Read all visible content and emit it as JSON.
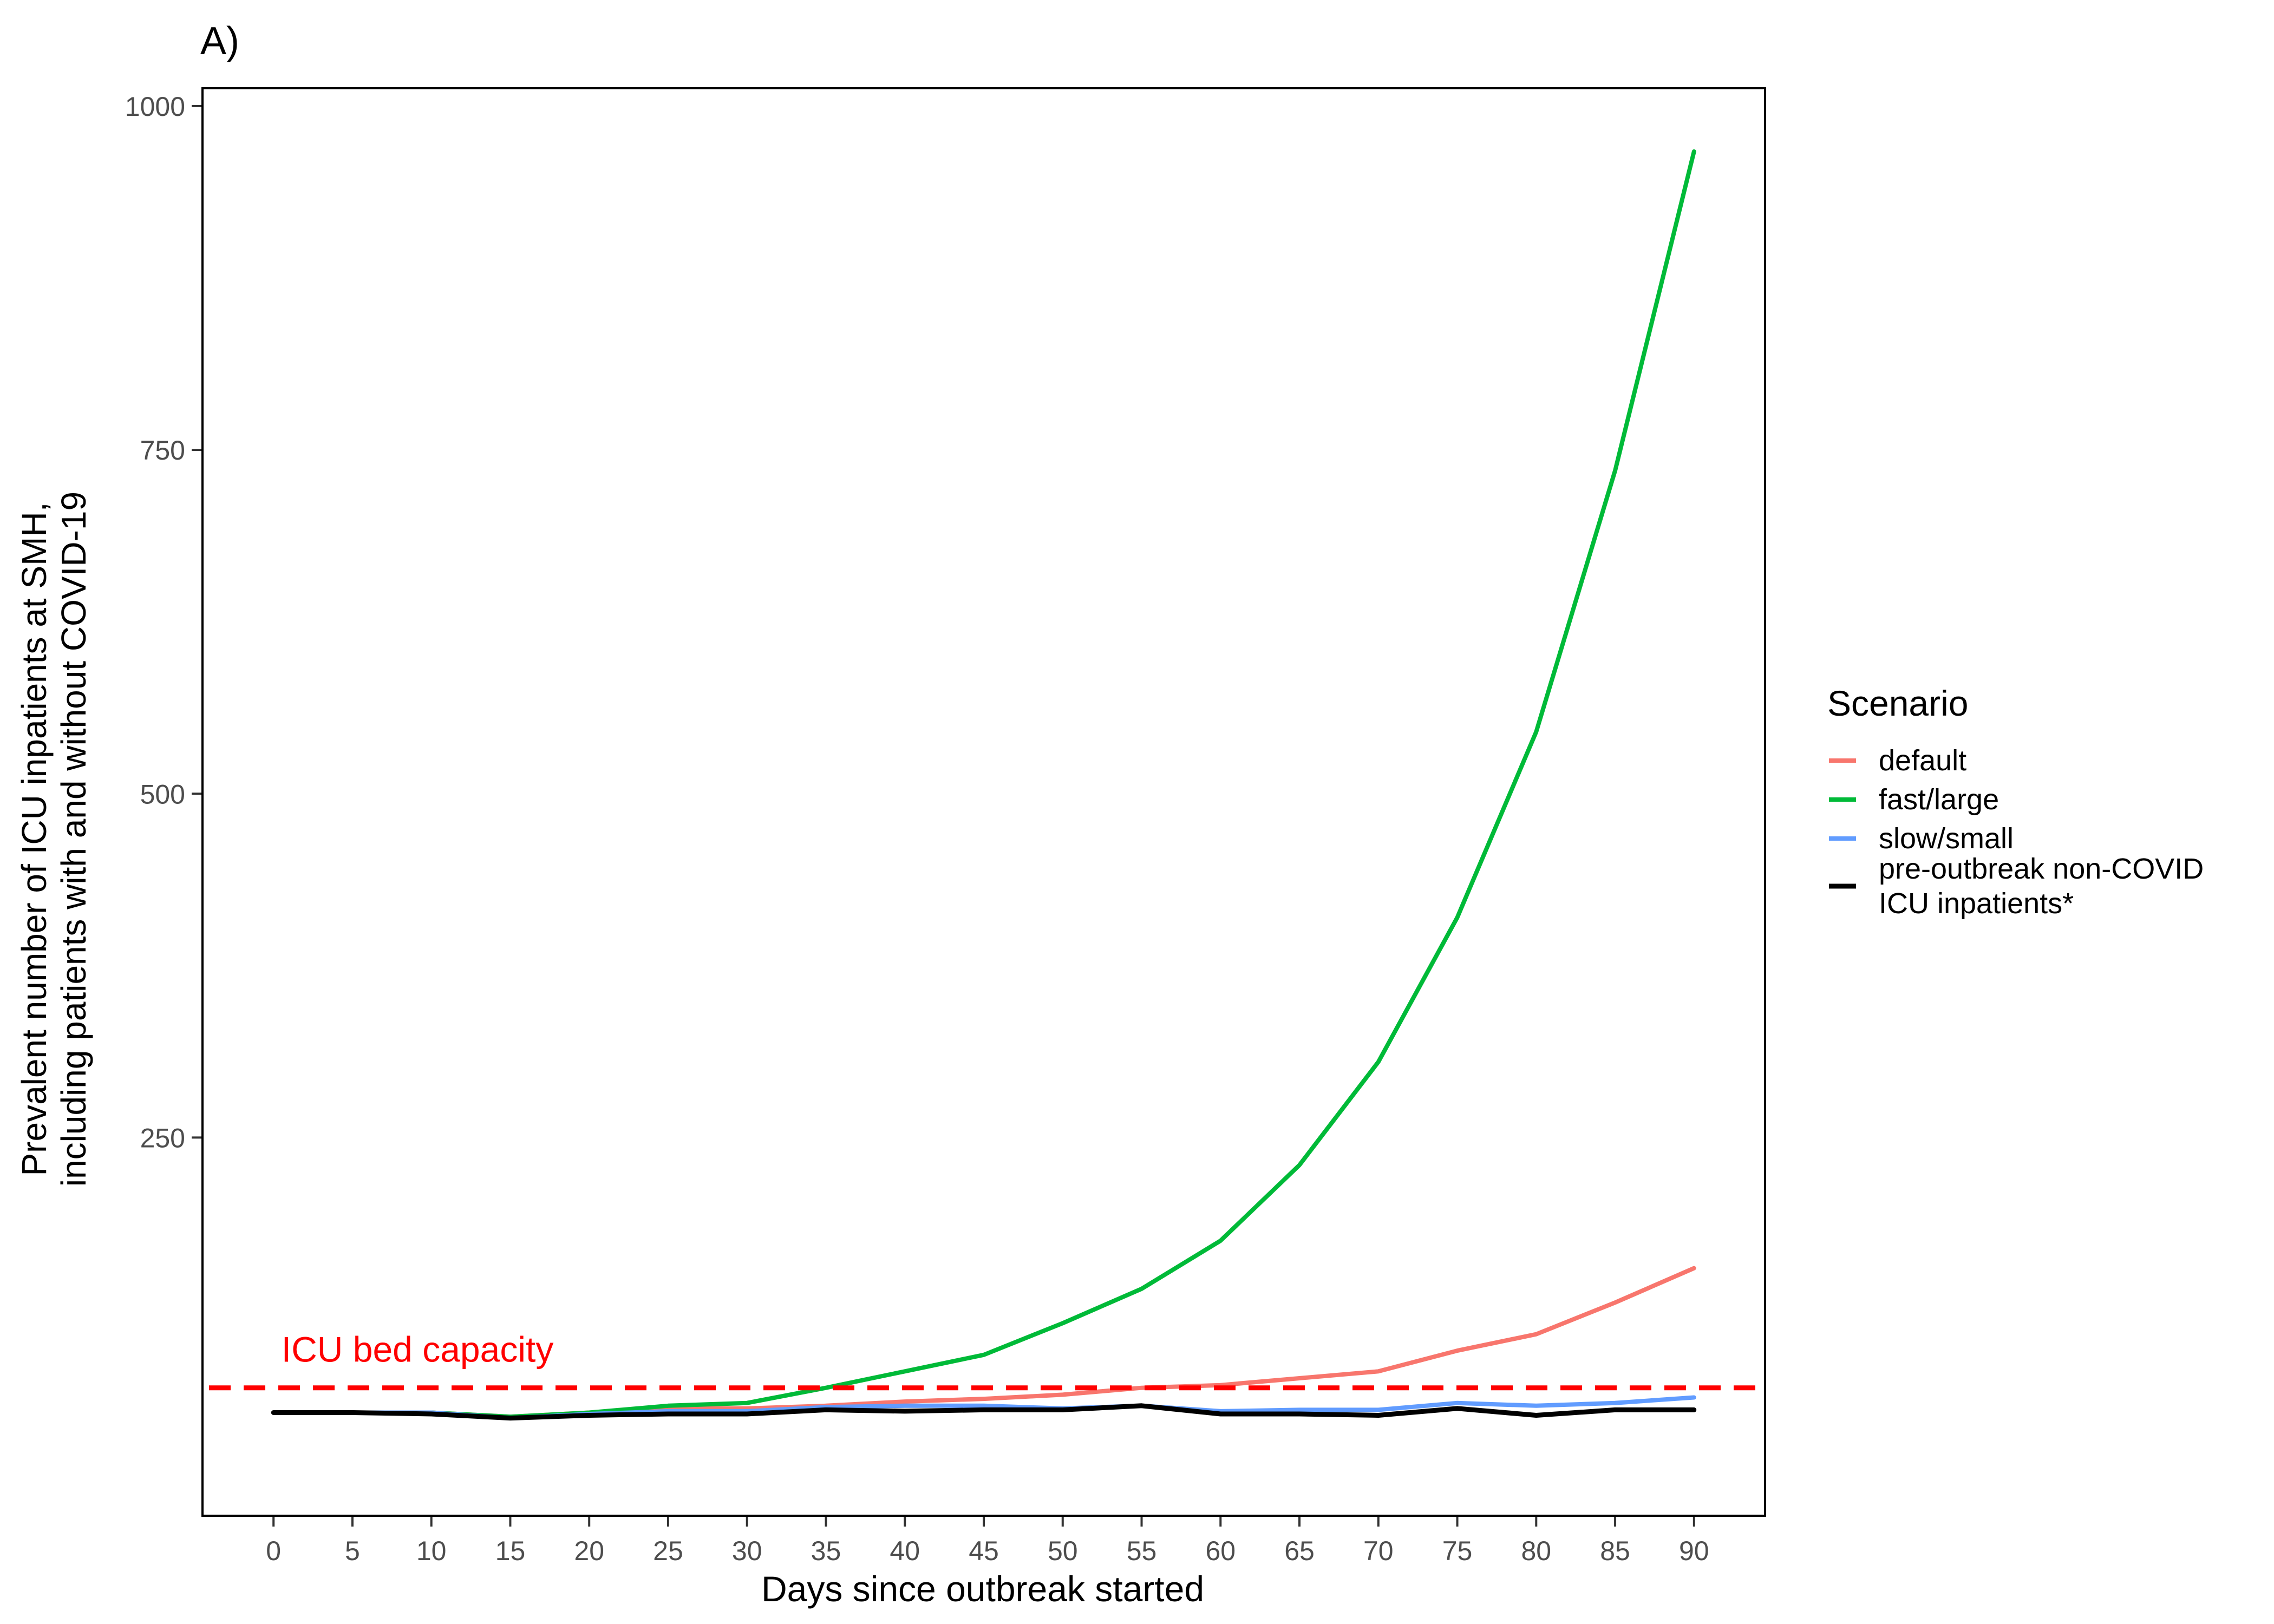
{
  "chart_data": {
    "type": "line",
    "panel_label": "A)",
    "xlabel": "Days since outbreak started",
    "ylabel_lines": [
      "Prevalent number of ICU inpatients at SMH,",
      "including patients with and without COVID-19"
    ],
    "xlim": [
      -4.5,
      94.5
    ],
    "ylim": [
      -25,
      1013
    ],
    "x_ticks": [
      0,
      5,
      10,
      15,
      20,
      25,
      30,
      35,
      40,
      45,
      50,
      55,
      60,
      65,
      70,
      75,
      80,
      85,
      90
    ],
    "y_ticks": [
      250,
      500,
      750,
      1000
    ],
    "grid": false,
    "legend": {
      "title": "Scenario",
      "placement": "right",
      "items": [
        {
          "key": "default",
          "lines": [
            "default"
          ]
        },
        {
          "key": "fast",
          "lines": [
            "fast/large"
          ]
        },
        {
          "key": "slow",
          "lines": [
            "slow/small"
          ]
        },
        {
          "key": "base",
          "lines": [
            "pre-outbreak non-COVID",
            " ICU inpatients*"
          ]
        }
      ]
    },
    "reference_line": {
      "label": "ICU bed capacity",
      "y": 68,
      "color": "#ff0000",
      "style": "dashed"
    },
    "series": [
      {
        "key": "default",
        "name": "default",
        "color": "#f8766d",
        "x": [
          0,
          5,
          10,
          15,
          20,
          25,
          30,
          35,
          40,
          45,
          50,
          55,
          60,
          65,
          70,
          75,
          80,
          85,
          90
        ],
        "values": [
          50,
          50,
          50,
          47,
          50,
          53,
          53,
          55,
          58,
          60,
          63,
          68,
          70,
          75,
          80,
          95,
          107,
          130,
          155
        ]
      },
      {
        "key": "fast",
        "name": "fast/large",
        "color": "#00ba38",
        "x": [
          0,
          5,
          10,
          15,
          20,
          25,
          30,
          35,
          40,
          45,
          50,
          55,
          60,
          65,
          70,
          75,
          80,
          85,
          90
        ],
        "values": [
          50,
          50,
          50,
          47,
          50,
          55,
          57,
          68,
          80,
          92,
          115,
          140,
          175,
          230,
          305,
          410,
          545,
          735,
          967
        ]
      },
      {
        "key": "slow",
        "name": "slow/small",
        "color": "#619cff",
        "x": [
          0,
          5,
          10,
          15,
          20,
          25,
          30,
          35,
          40,
          45,
          50,
          55,
          60,
          65,
          70,
          75,
          80,
          85,
          90
        ],
        "values": [
          50,
          50,
          50,
          46,
          49,
          51,
          51,
          54,
          55,
          55,
          53,
          55,
          51,
          52,
          52,
          57,
          55,
          57,
          61
        ]
      },
      {
        "key": "base",
        "name": "pre-outbreak non-COVID ICU inpatients*",
        "color": "#000000",
        "x": [
          0,
          5,
          10,
          15,
          20,
          25,
          30,
          35,
          40,
          45,
          50,
          55,
          60,
          65,
          70,
          75,
          80,
          85,
          90
        ],
        "values": [
          50,
          50,
          49,
          46,
          48,
          49,
          49,
          52,
          51,
          52,
          52,
          55,
          49,
          49,
          48,
          53,
          48,
          52,
          52
        ]
      }
    ]
  }
}
